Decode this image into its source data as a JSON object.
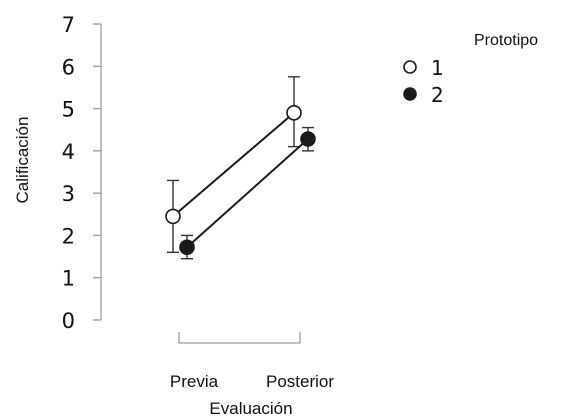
{
  "chart_data": {
    "type": "line",
    "title": "",
    "xlabel": "Evaluación",
    "ylabel": "Calificación",
    "categories": [
      "Previa",
      "Posterior"
    ],
    "ylim": [
      0,
      7
    ],
    "yticks": [
      0,
      1,
      2,
      3,
      4,
      5,
      6,
      7
    ],
    "grid": false,
    "legend": {
      "title": "Prototipo",
      "position": "top-right"
    },
    "series": [
      {
        "name": "1",
        "marker": "open-circle",
        "color": "#1a1a1a",
        "values": [
          2.45,
          4.9
        ],
        "error_low": [
          1.6,
          4.1
        ],
        "error_high": [
          3.3,
          5.75
        ]
      },
      {
        "name": "2",
        "marker": "filled-circle",
        "color": "#1a1a1a",
        "values": [
          1.72,
          4.28
        ],
        "error_low": [
          1.45,
          4.0
        ],
        "error_high": [
          2.0,
          4.55
        ]
      }
    ]
  }
}
